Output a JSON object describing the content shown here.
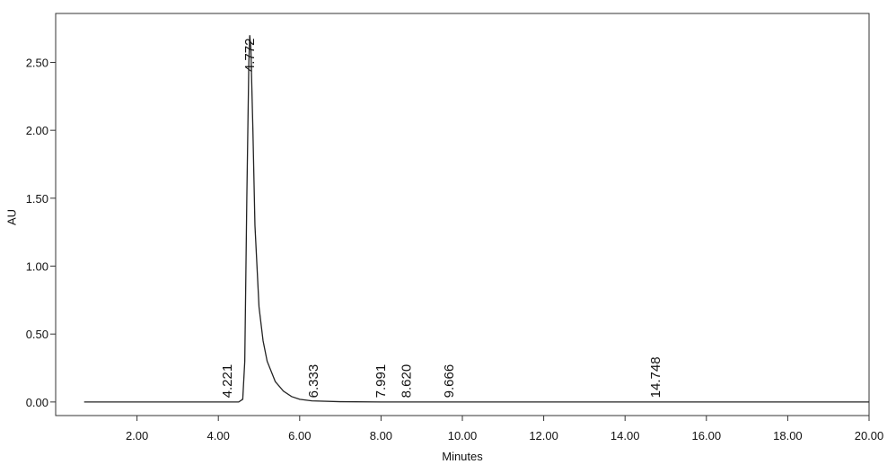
{
  "chart_data": {
    "type": "line",
    "x_label": "Minutes",
    "y_label": "AU",
    "x": [
      0.7,
      4.5,
      4.6,
      4.65,
      4.7,
      4.75,
      4.772,
      4.8,
      4.85,
      4.9,
      5.0,
      5.1,
      5.2,
      5.4,
      5.6,
      5.8,
      6.0,
      6.3,
      7.0,
      8.0,
      20.0
    ],
    "series": [
      {
        "color": "#222222",
        "values": [
          0,
          0,
          0.02,
          0.3,
          1.5,
          2.5,
          2.7,
          2.6,
          2.0,
          1.3,
          0.7,
          0.45,
          0.3,
          0.15,
          0.08,
          0.04,
          0.02,
          0.008,
          0.002,
          0,
          0
        ]
      }
    ],
    "xlim": [
      0,
      20
    ],
    "ylim": [
      -0.1,
      2.86
    ],
    "xticks": [
      {
        "value": 2,
        "label": "2.00"
      },
      {
        "value": 4,
        "label": "4.00"
      },
      {
        "value": 6,
        "label": "6.00"
      },
      {
        "value": 8,
        "label": "8.00"
      },
      {
        "value": 10,
        "label": "10.00"
      },
      {
        "value": 12,
        "label": "12.00"
      },
      {
        "value": 14,
        "label": "14.00"
      },
      {
        "value": 16,
        "label": "16.00"
      },
      {
        "value": 18,
        "label": "18.00"
      },
      {
        "value": 20,
        "label": "20.00"
      }
    ],
    "yticks": [
      {
        "value": 0,
        "label": "0.00"
      },
      {
        "value": 0.5,
        "label": "0.50"
      },
      {
        "value": 1,
        "label": "1.00"
      },
      {
        "value": 1.5,
        "label": "1.50"
      },
      {
        "value": 2,
        "label": "2.00"
      },
      {
        "value": 2.5,
        "label": "2.50"
      }
    ],
    "annotations": [
      {
        "x": 4.221,
        "y": 0.03,
        "label": "4.221"
      },
      {
        "x": 4.772,
        "y": 2.43,
        "label": "4.772"
      },
      {
        "x": 6.333,
        "y": 0.03,
        "label": "6.333"
      },
      {
        "x": 7.991,
        "y": 0.03,
        "label": "7.991"
      },
      {
        "x": 8.62,
        "y": 0.03,
        "label": "8.620"
      },
      {
        "x": 9.666,
        "y": 0.03,
        "label": "9.666"
      },
      {
        "x": 14.748,
        "y": 0.03,
        "label": "14.748"
      }
    ]
  }
}
